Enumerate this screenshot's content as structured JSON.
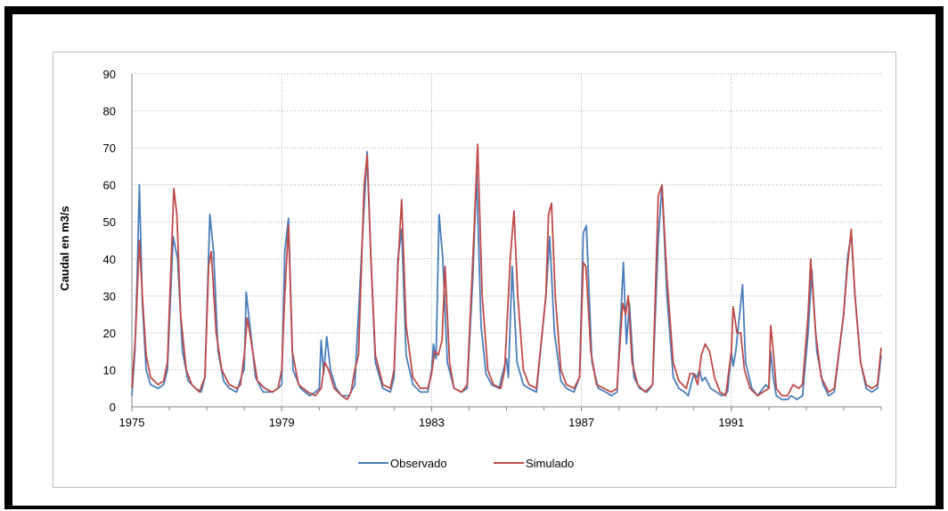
{
  "chart_data": {
    "type": "line",
    "title": "",
    "xlabel": "",
    "ylabel": "Caudal en m3/s",
    "ylim": [
      0,
      90
    ],
    "yticks": [
      0,
      10,
      20,
      30,
      40,
      50,
      60,
      70,
      80,
      90
    ],
    "xlim": [
      1975.0,
      1995.0
    ],
    "xticks": [
      {
        "value": 1975,
        "label": "1975"
      },
      {
        "value": 1979,
        "label": "1979"
      },
      {
        "value": 1983,
        "label": "1983"
      },
      {
        "value": 1987,
        "label": "1987"
      },
      {
        "value": 1991,
        "label": "1991"
      }
    ],
    "grid": "dotted",
    "legend": "bottom",
    "series": [
      {
        "name": "Observado",
        "color": "#4a7ebb",
        "points": [
          [
            1975.0,
            3
          ],
          [
            1975.08,
            15
          ],
          [
            1975.14,
            35
          ],
          [
            1975.2,
            60
          ],
          [
            1975.28,
            28
          ],
          [
            1975.38,
            10
          ],
          [
            1975.5,
            6
          ],
          [
            1975.7,
            5
          ],
          [
            1975.85,
            6
          ],
          [
            1975.95,
            10
          ],
          [
            1976.1,
            46
          ],
          [
            1976.22,
            40
          ],
          [
            1976.35,
            15
          ],
          [
            1976.5,
            7
          ],
          [
            1976.7,
            5
          ],
          [
            1976.85,
            4
          ],
          [
            1976.95,
            8
          ],
          [
            1977.08,
            52
          ],
          [
            1977.18,
            42
          ],
          [
            1977.3,
            15
          ],
          [
            1977.45,
            7
          ],
          [
            1977.6,
            5
          ],
          [
            1977.8,
            4
          ],
          [
            1977.95,
            9
          ],
          [
            1978.0,
            10
          ],
          [
            1978.05,
            31
          ],
          [
            1978.15,
            22
          ],
          [
            1978.3,
            8
          ],
          [
            1978.5,
            4
          ],
          [
            1978.75,
            4
          ],
          [
            1978.9,
            5
          ],
          [
            1979.0,
            6
          ],
          [
            1979.08,
            42
          ],
          [
            1979.18,
            51
          ],
          [
            1979.3,
            10
          ],
          [
            1979.5,
            5
          ],
          [
            1979.75,
            3
          ],
          [
            1979.9,
            4
          ],
          [
            1980.0,
            5
          ],
          [
            1980.05,
            18
          ],
          [
            1980.12,
            9
          ],
          [
            1980.2,
            19
          ],
          [
            1980.3,
            10
          ],
          [
            1980.45,
            5
          ],
          [
            1980.6,
            3
          ],
          [
            1980.8,
            3
          ],
          [
            1980.95,
            6
          ],
          [
            1981.15,
            45
          ],
          [
            1981.28,
            69
          ],
          [
            1981.38,
            40
          ],
          [
            1981.5,
            12
          ],
          [
            1981.7,
            5
          ],
          [
            1981.9,
            4
          ],
          [
            1982.0,
            8
          ],
          [
            1982.1,
            40
          ],
          [
            1982.2,
            48
          ],
          [
            1982.32,
            14
          ],
          [
            1982.5,
            6
          ],
          [
            1982.7,
            4
          ],
          [
            1982.9,
            4
          ],
          [
            1983.0,
            10
          ],
          [
            1983.05,
            17
          ],
          [
            1983.12,
            13
          ],
          [
            1983.2,
            52
          ],
          [
            1983.3,
            40
          ],
          [
            1983.42,
            12
          ],
          [
            1983.6,
            5
          ],
          [
            1983.8,
            4
          ],
          [
            1983.95,
            5
          ],
          [
            1984.1,
            35
          ],
          [
            1984.2,
            63
          ],
          [
            1984.32,
            22
          ],
          [
            1984.45,
            9
          ],
          [
            1984.6,
            6
          ],
          [
            1984.8,
            5
          ],
          [
            1984.92,
            10
          ],
          [
            1985.0,
            13
          ],
          [
            1985.05,
            8
          ],
          [
            1985.15,
            38
          ],
          [
            1985.28,
            12
          ],
          [
            1985.45,
            6
          ],
          [
            1985.6,
            5
          ],
          [
            1985.8,
            4
          ],
          [
            1986.05,
            30
          ],
          [
            1986.15,
            46
          ],
          [
            1986.28,
            20
          ],
          [
            1986.45,
            7
          ],
          [
            1986.6,
            5
          ],
          [
            1986.8,
            4
          ],
          [
            1986.95,
            8
          ],
          [
            1987.05,
            47
          ],
          [
            1987.13,
            49
          ],
          [
            1987.28,
            12
          ],
          [
            1987.45,
            5
          ],
          [
            1987.65,
            4
          ],
          [
            1987.8,
            3
          ],
          [
            1987.95,
            4
          ],
          [
            1988.12,
            39
          ],
          [
            1988.2,
            17
          ],
          [
            1988.28,
            28
          ],
          [
            1988.4,
            8
          ],
          [
            1988.55,
            5
          ],
          [
            1988.75,
            4
          ],
          [
            1988.9,
            6
          ],
          [
            1989.05,
            45
          ],
          [
            1989.15,
            60
          ],
          [
            1989.28,
            30
          ],
          [
            1989.45,
            8
          ],
          [
            1989.6,
            5
          ],
          [
            1989.75,
            4
          ],
          [
            1989.85,
            3
          ],
          [
            1990.0,
            9
          ],
          [
            1990.08,
            8
          ],
          [
            1990.15,
            10
          ],
          [
            1990.22,
            7
          ],
          [
            1990.3,
            8
          ],
          [
            1990.45,
            5
          ],
          [
            1990.6,
            4
          ],
          [
            1990.75,
            3
          ],
          [
            1990.9,
            4
          ],
          [
            1991.0,
            15
          ],
          [
            1991.05,
            11
          ],
          [
            1991.12,
            15
          ],
          [
            1991.22,
            25
          ],
          [
            1991.3,
            33
          ],
          [
            1991.38,
            12
          ],
          [
            1991.55,
            5
          ],
          [
            1991.7,
            3
          ],
          [
            1991.85,
            5
          ],
          [
            1991.92,
            6
          ],
          [
            1992.0,
            5
          ],
          [
            1992.05,
            15
          ],
          [
            1992.12,
            8
          ],
          [
            1992.2,
            3
          ],
          [
            1992.35,
            2
          ],
          [
            1992.5,
            2
          ],
          [
            1992.6,
            3
          ],
          [
            1992.75,
            2
          ],
          [
            1992.9,
            3
          ],
          [
            1993.05,
            20
          ],
          [
            1993.15,
            37
          ],
          [
            1993.28,
            15
          ],
          [
            1993.45,
            6
          ],
          [
            1993.6,
            3
          ],
          [
            1993.75,
            4
          ],
          [
            1994.0,
            25
          ],
          [
            1994.1,
            40
          ],
          [
            1994.2,
            47
          ],
          [
            1994.3,
            30
          ],
          [
            1994.45,
            12
          ],
          [
            1994.6,
            5
          ],
          [
            1994.75,
            4
          ],
          [
            1994.9,
            5
          ],
          [
            1995.0,
            14
          ]
        ]
      },
      {
        "name": "Simulado",
        "color": "#be4b48",
        "points": [
          [
            1975.0,
            5
          ],
          [
            1975.1,
            20
          ],
          [
            1975.2,
            45
          ],
          [
            1975.28,
            30
          ],
          [
            1975.38,
            14
          ],
          [
            1975.5,
            8
          ],
          [
            1975.7,
            6
          ],
          [
            1975.85,
            7
          ],
          [
            1975.95,
            12
          ],
          [
            1976.05,
            40
          ],
          [
            1976.12,
            59
          ],
          [
            1976.2,
            52
          ],
          [
            1976.3,
            25
          ],
          [
            1976.45,
            10
          ],
          [
            1976.6,
            6
          ],
          [
            1976.8,
            4
          ],
          [
            1976.95,
            8
          ],
          [
            1977.05,
            38
          ],
          [
            1977.12,
            42
          ],
          [
            1977.25,
            20
          ],
          [
            1977.4,
            10
          ],
          [
            1977.6,
            6
          ],
          [
            1977.8,
            5
          ],
          [
            1977.9,
            6
          ],
          [
            1978.0,
            14
          ],
          [
            1978.08,
            24
          ],
          [
            1978.18,
            18
          ],
          [
            1978.35,
            7
          ],
          [
            1978.55,
            5
          ],
          [
            1978.75,
            4
          ],
          [
            1978.9,
            5
          ],
          [
            1979.0,
            10
          ],
          [
            1979.08,
            30
          ],
          [
            1979.18,
            49
          ],
          [
            1979.28,
            15
          ],
          [
            1979.45,
            6
          ],
          [
            1979.7,
            4
          ],
          [
            1979.9,
            3
          ],
          [
            1980.05,
            5
          ],
          [
            1980.15,
            12
          ],
          [
            1980.25,
            10
          ],
          [
            1980.4,
            5
          ],
          [
            1980.6,
            3
          ],
          [
            1980.75,
            2
          ],
          [
            1980.85,
            4
          ],
          [
            1980.95,
            10
          ],
          [
            1981.05,
            14
          ],
          [
            1981.2,
            60
          ],
          [
            1981.28,
            68
          ],
          [
            1981.38,
            40
          ],
          [
            1981.5,
            14
          ],
          [
            1981.7,
            6
          ],
          [
            1981.9,
            5
          ],
          [
            1982.0,
            10
          ],
          [
            1982.1,
            38
          ],
          [
            1982.2,
            56
          ],
          [
            1982.32,
            22
          ],
          [
            1982.5,
            8
          ],
          [
            1982.7,
            5
          ],
          [
            1982.9,
            5
          ],
          [
            1983.0,
            9
          ],
          [
            1983.08,
            15
          ],
          [
            1983.18,
            14
          ],
          [
            1983.28,
            18
          ],
          [
            1983.36,
            38
          ],
          [
            1983.48,
            12
          ],
          [
            1983.6,
            5
          ],
          [
            1983.8,
            4
          ],
          [
            1983.95,
            6
          ],
          [
            1984.1,
            40
          ],
          [
            1984.23,
            71
          ],
          [
            1984.35,
            30
          ],
          [
            1984.5,
            10
          ],
          [
            1984.65,
            6
          ],
          [
            1984.85,
            5
          ],
          [
            1984.95,
            10
          ],
          [
            1985.1,
            40
          ],
          [
            1985.2,
            53
          ],
          [
            1985.3,
            30
          ],
          [
            1985.45,
            10
          ],
          [
            1985.6,
            6
          ],
          [
            1985.8,
            5
          ],
          [
            1986.05,
            30
          ],
          [
            1986.12,
            52
          ],
          [
            1986.2,
            55
          ],
          [
            1986.3,
            30
          ],
          [
            1986.45,
            10
          ],
          [
            1986.6,
            6
          ],
          [
            1986.8,
            5
          ],
          [
            1986.95,
            8
          ],
          [
            1987.05,
            39
          ],
          [
            1987.12,
            38
          ],
          [
            1987.25,
            15
          ],
          [
            1987.4,
            6
          ],
          [
            1987.6,
            5
          ],
          [
            1987.8,
            4
          ],
          [
            1987.95,
            5
          ],
          [
            1988.1,
            28
          ],
          [
            1988.18,
            25
          ],
          [
            1988.25,
            30
          ],
          [
            1988.35,
            12
          ],
          [
            1988.5,
            6
          ],
          [
            1988.7,
            4
          ],
          [
            1988.9,
            6
          ],
          [
            1989.05,
            57
          ],
          [
            1989.15,
            60
          ],
          [
            1989.28,
            35
          ],
          [
            1989.45,
            12
          ],
          [
            1989.6,
            7
          ],
          [
            1989.8,
            5
          ],
          [
            1989.9,
            9
          ],
          [
            1990.0,
            9
          ],
          [
            1990.1,
            6
          ],
          [
            1990.2,
            14
          ],
          [
            1990.3,
            17
          ],
          [
            1990.42,
            15
          ],
          [
            1990.55,
            8
          ],
          [
            1990.7,
            4
          ],
          [
            1990.85,
            3
          ],
          [
            1991.0,
            15
          ],
          [
            1991.05,
            27
          ],
          [
            1991.15,
            20
          ],
          [
            1991.25,
            20
          ],
          [
            1991.35,
            10
          ],
          [
            1991.5,
            5
          ],
          [
            1991.7,
            3
          ],
          [
            1991.85,
            4
          ],
          [
            1992.0,
            5
          ],
          [
            1992.05,
            22
          ],
          [
            1992.12,
            15
          ],
          [
            1992.2,
            5
          ],
          [
            1992.35,
            3
          ],
          [
            1992.5,
            3
          ],
          [
            1992.65,
            6
          ],
          [
            1992.8,
            5
          ],
          [
            1992.9,
            6
          ],
          [
            1993.05,
            25
          ],
          [
            1993.12,
            40
          ],
          [
            1993.25,
            20
          ],
          [
            1993.4,
            8
          ],
          [
            1993.6,
            4
          ],
          [
            1993.75,
            5
          ],
          [
            1994.0,
            25
          ],
          [
            1994.1,
            38
          ],
          [
            1994.2,
            48
          ],
          [
            1994.3,
            30
          ],
          [
            1994.45,
            12
          ],
          [
            1994.6,
            6
          ],
          [
            1994.75,
            5
          ],
          [
            1994.9,
            6
          ],
          [
            1995.0,
            16
          ]
        ]
      }
    ]
  }
}
